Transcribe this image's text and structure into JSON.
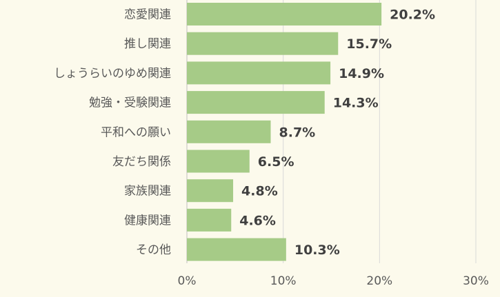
{
  "chart_data": {
    "type": "bar",
    "orientation": "horizontal",
    "categories": [
      "恋愛関連",
      "推し関連",
      "しょうらいのゆめ関連",
      "勉強・受験関連",
      "平和への願い",
      "友だち関係",
      "家族関連",
      "健康関連",
      "その他"
    ],
    "values": [
      20.2,
      15.7,
      14.9,
      14.3,
      8.7,
      6.5,
      4.8,
      4.6,
      10.3
    ],
    "value_labels": [
      "20.2%",
      "15.7%",
      "14.9%",
      "14.3%",
      "8.7%",
      "6.5%",
      "4.8%",
      "4.6%",
      "10.3%"
    ],
    "x_ticks": [
      0,
      10,
      20,
      30
    ],
    "x_tick_labels": [
      "0%",
      "10%",
      "20%",
      "30%"
    ],
    "xlim": [
      0,
      30
    ],
    "grid": "vertical",
    "legend": "none",
    "colors": {
      "bar": "#a6cb87",
      "grid": "#d9d9d9",
      "background": "#fcfaec"
    }
  }
}
